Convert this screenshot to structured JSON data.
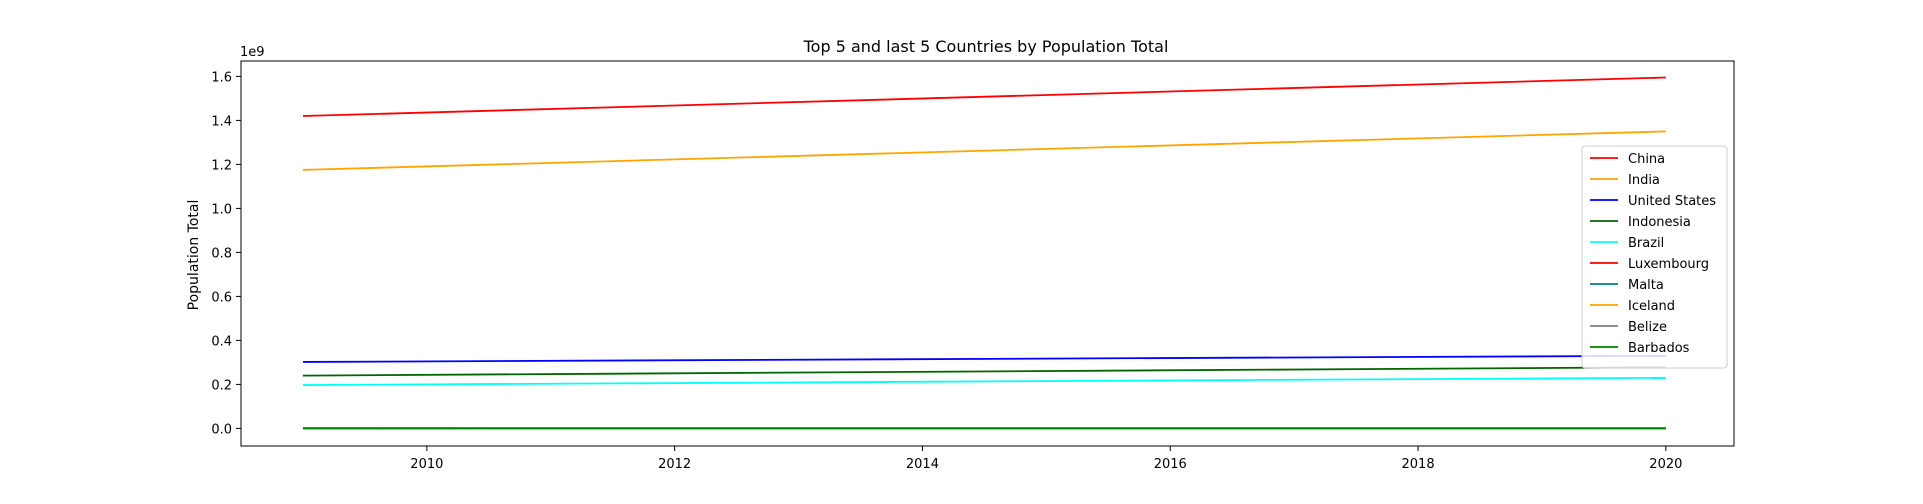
{
  "chart_data": {
    "type": "line",
    "title": "Top 5 and last 5 Countries by Population Total",
    "xlabel": "",
    "ylabel": "Population Total",
    "y_multiplier_label": "1e9",
    "xlim": [
      2008.5,
      2020.55
    ],
    "ylim": [
      -0.08,
      1.67
    ],
    "x_ticks": [
      2010,
      2012,
      2014,
      2016,
      2018,
      2020
    ],
    "x_tick_labels": [
      "2010",
      "2012",
      "2014",
      "2016",
      "2018",
      "2020"
    ],
    "y_ticks": [
      0.0,
      0.2,
      0.4,
      0.6,
      0.8,
      1.0,
      1.2,
      1.4,
      1.6
    ],
    "y_tick_labels": [
      "0.0",
      "0.2",
      "0.4",
      "0.6",
      "0.8",
      "1.0",
      "1.2",
      "1.4",
      "1.6"
    ],
    "grid": false,
    "legend_position": "right",
    "series": [
      {
        "name": "China",
        "color": "#ff0000",
        "x": [
          2009,
          2020
        ],
        "y": [
          1.42,
          1.595
        ]
      },
      {
        "name": "India",
        "color": "#ffa500",
        "x": [
          2009,
          2020
        ],
        "y": [
          1.175,
          1.35
        ]
      },
      {
        "name": "United States",
        "color": "#0000ff",
        "x": [
          2009,
          2020
        ],
        "y": [
          0.302,
          0.33
        ]
      },
      {
        "name": "Indonesia",
        "color": "#006400",
        "x": [
          2009,
          2020
        ],
        "y": [
          0.24,
          0.278
        ]
      },
      {
        "name": "Brazil",
        "color": "#00ffff",
        "x": [
          2009,
          2020
        ],
        "y": [
          0.197,
          0.23
        ]
      },
      {
        "name": "Luxembourg",
        "color": "#ff0000",
        "x": [
          2009,
          2020
        ],
        "y": [
          0.0005,
          0.0006
        ]
      },
      {
        "name": "Malta",
        "color": "#008080",
        "x": [
          2009,
          2020
        ],
        "y": [
          0.0004,
          0.0005
        ]
      },
      {
        "name": "Iceland",
        "color": "#ffa500",
        "x": [
          2009,
          2020
        ],
        "y": [
          0.0003,
          0.0004
        ]
      },
      {
        "name": "Belize",
        "color": "#808080",
        "x": [
          2009,
          2020
        ],
        "y": [
          0.0003,
          0.0004
        ]
      },
      {
        "name": "Barbados",
        "color": "#008000",
        "x": [
          2009,
          2020
        ],
        "y": [
          0.0003,
          0.0003
        ]
      }
    ]
  }
}
